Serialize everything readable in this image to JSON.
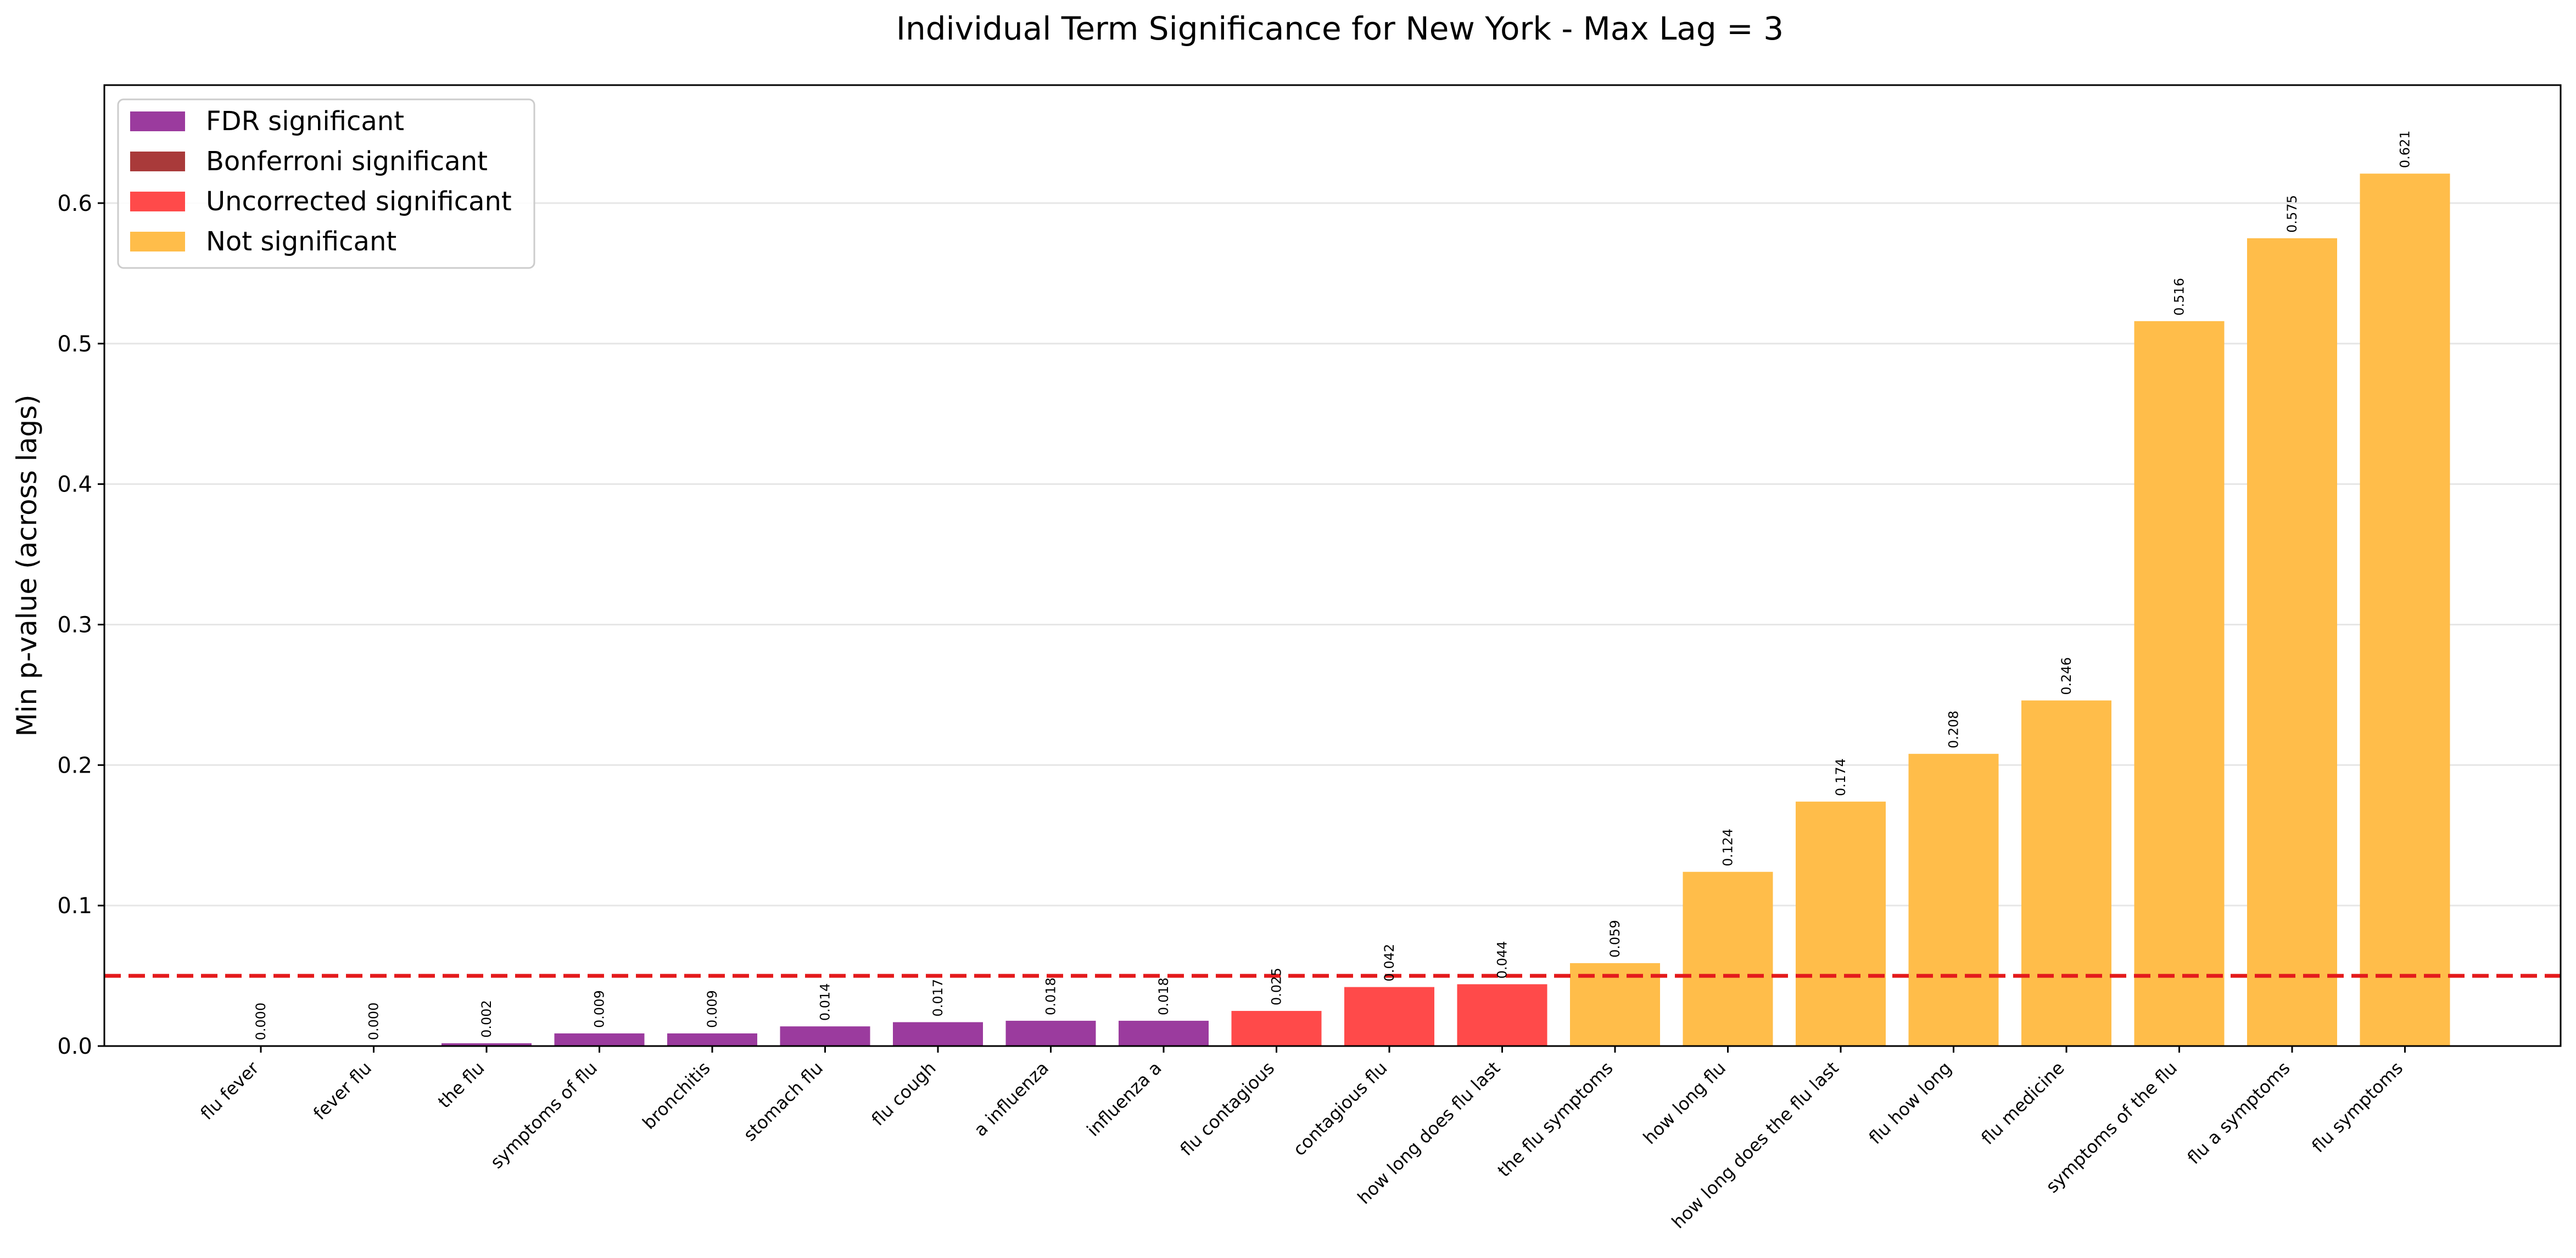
{
  "chart_data": {
    "type": "bar",
    "title": "Individual Term Significance for New York - Max Lag = 3",
    "xlabel": "",
    "ylabel": "Min p-value (across lags)",
    "ylim": [
      0,
      0.684
    ],
    "yticks": [
      "0.0",
      "0.1",
      "0.2",
      "0.3",
      "0.4",
      "0.5",
      "0.6"
    ],
    "grid": "y",
    "threshold": 0.05,
    "threshold_color": "#e41a1c",
    "legend_position": "top-left",
    "legend": [
      {
        "label": "FDR significant",
        "color": "#9b3b9e"
      },
      {
        "label": "Bonferroni significant",
        "color": "#a93a3a"
      },
      {
        "label": "Uncorrected significant",
        "color": "#ff4a4a"
      },
      {
        "label": "Not significant",
        "color": "#ffbd4a"
      }
    ],
    "categories": [
      "flu fever",
      "fever flu",
      "the flu",
      "symptoms of flu",
      "bronchitis",
      "stomach flu",
      "flu cough",
      "a influenza",
      "influenza a",
      "flu contagious",
      "contagious flu",
      "how long does flu last",
      "the flu symptoms",
      "how long flu",
      "how long does the flu last",
      "flu how long",
      "flu medicine",
      "symptoms of the flu",
      "flu a symptoms",
      "flu symptoms"
    ],
    "values": [
      0.0002,
      0.0003,
      0.002,
      0.009,
      0.009,
      0.014,
      0.017,
      0.018,
      0.018,
      0.025,
      0.042,
      0.044,
      0.059,
      0.124,
      0.174,
      0.208,
      0.246,
      0.516,
      0.575,
      0.621
    ],
    "value_labels": [
      "0.000",
      "0.000",
      "0.002",
      "0.009",
      "0.009",
      "0.014",
      "0.017",
      "0.018",
      "0.018",
      "0.025",
      "0.042",
      "0.044",
      "0.059",
      "0.124",
      "0.174",
      "0.208",
      "0.246",
      "0.516",
      "0.575",
      "0.621"
    ],
    "significance": [
      "FDR",
      "FDR",
      "FDR",
      "FDR",
      "FDR",
      "FDR",
      "FDR",
      "FDR",
      "FDR",
      "Uncorrected",
      "Uncorrected",
      "Uncorrected",
      "Not",
      "Not",
      "Not",
      "Not",
      "Not",
      "Not",
      "Not",
      "Not"
    ],
    "significance_colors": {
      "FDR": "#9b3b9e",
      "Bonferroni": "#a93a3a",
      "Uncorrected": "#ff4a4a",
      "Not": "#ffbd4a"
    }
  }
}
